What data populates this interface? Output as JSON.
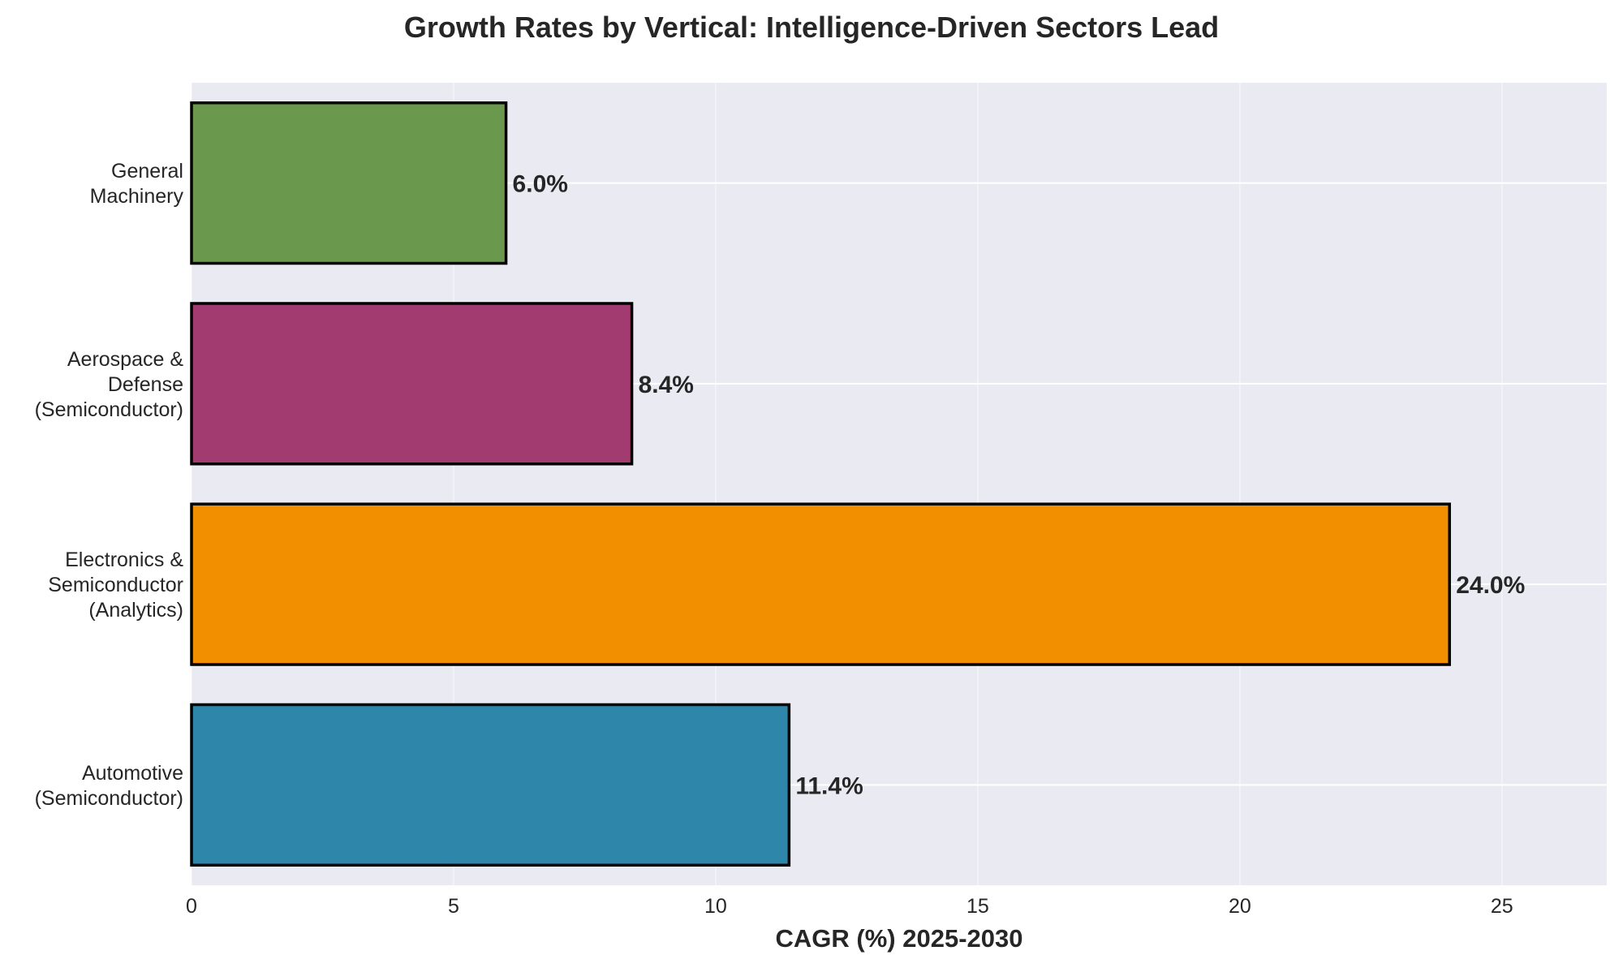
{
  "chart_data": {
    "type": "bar",
    "orientation": "horizontal",
    "title": "Growth Rates by Vertical: Intelligence-Driven Sectors Lead",
    "xlabel": "CAGR (%) 2025-2030",
    "ylabel": "",
    "xlim": [
      0,
      27
    ],
    "xticks": [
      0,
      5,
      10,
      15,
      20,
      25
    ],
    "grid": true,
    "categories": [
      [
        "General",
        "Machinery"
      ],
      [
        "Aerospace &",
        "Defense",
        "(Semiconductor)"
      ],
      [
        "Electronics &",
        "Semiconductor",
        "(Analytics)"
      ],
      [
        "Automotive",
        "(Semiconductor)"
      ]
    ],
    "values": [
      6.0,
      8.4,
      24.0,
      11.4
    ],
    "data_labels": [
      "6.0%",
      "8.4%",
      "24.0%",
      "11.4%"
    ],
    "colors": [
      "#6a994e",
      "#a23b6f",
      "#f18f01",
      "#2e86ab"
    ],
    "background": "#eaeaf2"
  }
}
